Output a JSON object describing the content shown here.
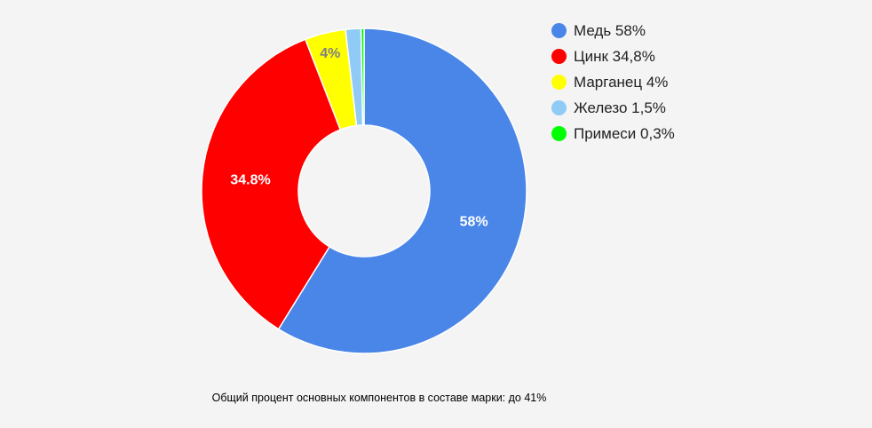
{
  "chart_data": {
    "type": "pie",
    "series": [
      {
        "name": "Медь",
        "value": 58,
        "legend": "Медь 58%",
        "label": "58%",
        "color": "#4a86e8"
      },
      {
        "name": "Цинк",
        "value": 34.8,
        "legend": "Цинк 34,8%",
        "label": "34.8%",
        "color": "#ff0000"
      },
      {
        "name": "Марганец",
        "value": 4,
        "legend": "Марганец 4%",
        "label": "4%",
        "color": "#ffff00"
      },
      {
        "name": "Железо",
        "value": 1.5,
        "legend": "Железо 1,5%",
        "label": "",
        "color": "#8fcbf6"
      },
      {
        "name": "Примеси",
        "value": 0.3,
        "legend": "Примеси 0,3%",
        "label": "",
        "color": "#00ff00"
      }
    ],
    "hole": true,
    "legend_position": "top-right"
  },
  "caption": "Общий процент основных компонентов в составе марки: до 41%"
}
